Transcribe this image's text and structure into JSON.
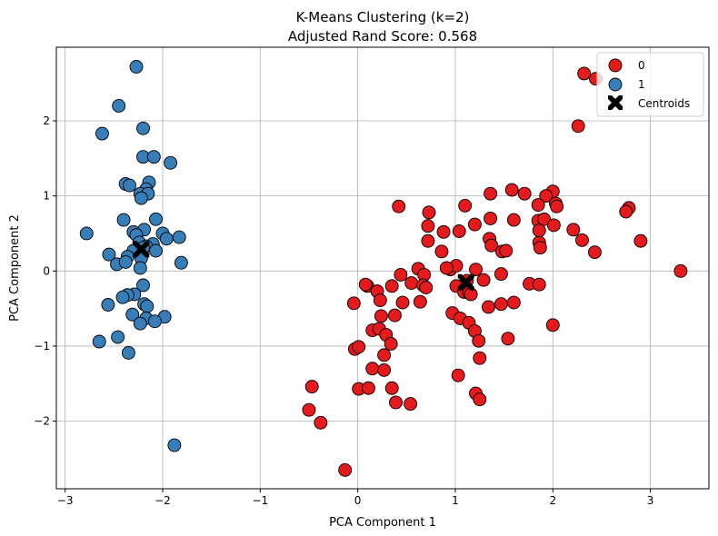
{
  "chart_data": {
    "type": "scatter",
    "title": "K-Means Clustering (k=2)",
    "subtitle": "Adjusted Rand Score: 0.568",
    "xlabel": "PCA Component 1",
    "ylabel": "PCA Component 2",
    "xlim": [
      -3.09,
      3.6
    ],
    "ylim": [
      -2.9,
      2.98
    ],
    "xticks": [
      -3,
      -2,
      -1,
      0,
      1,
      2,
      3
    ],
    "yticks": [
      -2,
      -1,
      0,
      1,
      2
    ],
    "grid": true,
    "legend_position": "top-right",
    "series": [
      {
        "name": "0",
        "color": "#e41a1c",
        "points": [
          [
            2.32,
            2.63
          ],
          [
            2.44,
            2.56
          ],
          [
            2.26,
            1.93
          ],
          [
            1.58,
            1.08
          ],
          [
            1.71,
            1.03
          ],
          [
            1.36,
            1.03
          ],
          [
            2.0,
            1.06
          ],
          [
            1.93,
            1.0
          ],
          [
            2.03,
            0.9
          ],
          [
            2.04,
            0.86
          ],
          [
            1.85,
            0.88
          ],
          [
            1.1,
            0.87
          ],
          [
            0.42,
            0.86
          ],
          [
            0.73,
            0.78
          ],
          [
            1.2,
            0.62
          ],
          [
            0.72,
            0.6
          ],
          [
            0.88,
            0.52
          ],
          [
            1.04,
            0.53
          ],
          [
            1.6,
            0.68
          ],
          [
            1.36,
            0.7
          ],
          [
            1.85,
            0.67
          ],
          [
            1.91,
            0.69
          ],
          [
            2.01,
            0.61
          ],
          [
            2.21,
            0.55
          ],
          [
            2.78,
            0.84
          ],
          [
            2.75,
            0.79
          ],
          [
            2.9,
            0.4
          ],
          [
            2.3,
            0.41
          ],
          [
            2.43,
            0.25
          ],
          [
            1.86,
            0.38
          ],
          [
            1.87,
            0.31
          ],
          [
            1.86,
            0.54
          ],
          [
            1.35,
            0.43
          ],
          [
            1.37,
            0.34
          ],
          [
            1.48,
            0.26
          ],
          [
            1.52,
            0.27
          ],
          [
            0.72,
            0.4
          ],
          [
            0.86,
            0.26
          ],
          [
            3.31,
            0.0
          ],
          [
            1.21,
            0.02
          ],
          [
            0.95,
            0.02
          ],
          [
            1.01,
            0.07
          ],
          [
            0.91,
            0.04
          ],
          [
            0.62,
            0.03
          ],
          [
            0.68,
            -0.05
          ],
          [
            0.44,
            -0.05
          ],
          [
            1.47,
            -0.04
          ],
          [
            1.29,
            -0.12
          ],
          [
            1.12,
            -0.13
          ],
          [
            0.55,
            -0.16
          ],
          [
            0.67,
            -0.19
          ],
          [
            0.7,
            -0.22
          ],
          [
            1.01,
            -0.2
          ],
          [
            1.09,
            -0.28
          ],
          [
            1.14,
            -0.29
          ],
          [
            1.16,
            -0.31
          ],
          [
            0.35,
            -0.2
          ],
          [
            0.1,
            -0.2
          ],
          [
            0.08,
            -0.18
          ],
          [
            0.2,
            -0.27
          ],
          [
            0.23,
            -0.39
          ],
          [
            -0.04,
            -0.43
          ],
          [
            0.46,
            -0.42
          ],
          [
            0.64,
            -0.41
          ],
          [
            1.34,
            -0.48
          ],
          [
            1.47,
            -0.44
          ],
          [
            1.6,
            -0.42
          ],
          [
            1.76,
            -0.17
          ],
          [
            1.86,
            -0.18
          ],
          [
            0.97,
            -0.56
          ],
          [
            1.05,
            -0.63
          ],
          [
            0.38,
            -0.59
          ],
          [
            0.24,
            -0.6
          ],
          [
            1.14,
            -0.69
          ],
          [
            1.2,
            -0.8
          ],
          [
            2.0,
            -0.72
          ],
          [
            1.54,
            -0.9
          ],
          [
            0.15,
            -0.79
          ],
          [
            0.22,
            -0.77
          ],
          [
            0.29,
            -0.85
          ],
          [
            1.24,
            -0.93
          ],
          [
            0.34,
            -0.97
          ],
          [
            -0.03,
            -1.04
          ],
          [
            0.01,
            -1.01
          ],
          [
            0.27,
            -1.12
          ],
          [
            1.25,
            -1.16
          ],
          [
            0.15,
            -1.3
          ],
          [
            0.27,
            -1.32
          ],
          [
            1.03,
            -1.39
          ],
          [
            -0.47,
            -1.54
          ],
          [
            0.01,
            -1.57
          ],
          [
            0.11,
            -1.56
          ],
          [
            0.35,
            -1.56
          ],
          [
            1.21,
            -1.63
          ],
          [
            1.25,
            -1.71
          ],
          [
            0.39,
            -1.75
          ],
          [
            0.54,
            -1.77
          ],
          [
            -0.5,
            -1.85
          ],
          [
            -0.38,
            -2.02
          ],
          [
            -0.13,
            -2.65
          ]
        ]
      },
      {
        "name": "1",
        "color": "#377eb8",
        "points": [
          [
            -2.27,
            2.72
          ],
          [
            -2.45,
            2.2
          ],
          [
            -2.2,
            1.9
          ],
          [
            -2.62,
            1.83
          ],
          [
            -2.2,
            1.52
          ],
          [
            -2.09,
            1.52
          ],
          [
            -1.92,
            1.44
          ],
          [
            -2.38,
            1.16
          ],
          [
            -2.34,
            1.14
          ],
          [
            -2.14,
            1.18
          ],
          [
            -2.17,
            1.09
          ],
          [
            -2.23,
            1.03
          ],
          [
            -2.15,
            1.03
          ],
          [
            -2.22,
            0.97
          ],
          [
            -2.07,
            0.69
          ],
          [
            -2.4,
            0.68
          ],
          [
            -2.3,
            0.52
          ],
          [
            -2.0,
            0.5
          ],
          [
            -2.78,
            0.5
          ],
          [
            -2.19,
            0.55
          ],
          [
            -2.27,
            0.48
          ],
          [
            -1.96,
            0.43
          ],
          [
            -1.83,
            0.45
          ],
          [
            -2.1,
            0.36
          ],
          [
            -2.24,
            0.38
          ],
          [
            -2.17,
            0.33
          ],
          [
            -2.2,
            0.31
          ],
          [
            -2.3,
            0.27
          ],
          [
            -2.07,
            0.27
          ],
          [
            -2.55,
            0.22
          ],
          [
            -2.36,
            0.19
          ],
          [
            -2.22,
            0.17
          ],
          [
            -2.47,
            0.09
          ],
          [
            -1.81,
            0.11
          ],
          [
            -2.38,
            0.12
          ],
          [
            -2.23,
            0.04
          ],
          [
            -2.2,
            -0.19
          ],
          [
            -2.29,
            -0.31
          ],
          [
            -2.36,
            -0.32
          ],
          [
            -2.41,
            -0.35
          ],
          [
            -2.19,
            -0.44
          ],
          [
            -2.16,
            -0.47
          ],
          [
            -2.56,
            -0.45
          ],
          [
            -2.31,
            -0.58
          ],
          [
            -1.98,
            -0.61
          ],
          [
            -2.17,
            -0.63
          ],
          [
            -2.08,
            -0.67
          ],
          [
            -2.23,
            -0.7
          ],
          [
            -2.46,
            -0.88
          ],
          [
            -2.65,
            -0.94
          ],
          [
            -2.35,
            -1.09
          ],
          [
            -1.88,
            -2.32
          ]
        ]
      },
      {
        "name": "Centroids",
        "color": "#000000",
        "marker": "X",
        "points": [
          [
            -2.22,
            0.29
          ],
          [
            1.11,
            -0.15
          ]
        ]
      }
    ]
  }
}
